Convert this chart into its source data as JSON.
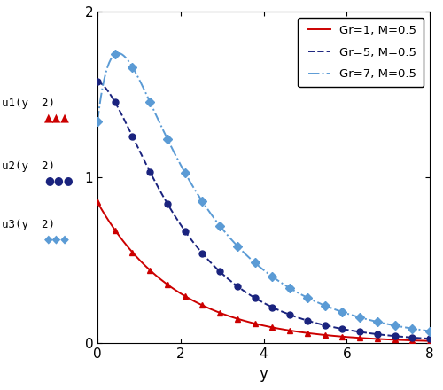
{
  "title": "",
  "xlabel": "y",
  "ylabel": "",
  "xlim": [
    0,
    8
  ],
  "ylim": [
    0,
    2
  ],
  "xticks": [
    0,
    2,
    4,
    6,
    8
  ],
  "yticks": [
    0,
    1,
    2
  ],
  "series": [
    {
      "label": "Gr=1, M=0.5",
      "Gr": 1,
      "M": 0.5,
      "line_color": "#cc0000",
      "marker": "^",
      "marker_color": "#cc0000",
      "linestyle": "-",
      "y0": 0.85,
      "peak_y": 0.0,
      "peak_u": 0.85,
      "decay": 0.52
    },
    {
      "label": "Gr=5, M=0.5",
      "Gr": 5,
      "M": 0.5,
      "line_color": "#1a237e",
      "marker": "o",
      "marker_color": "#1a237e",
      "linestyle": "--",
      "y0": 1.58,
      "peak_y": 0.8,
      "peak_u": 1.58,
      "decay": 0.72
    },
    {
      "label": "Gr=7, M=0.5",
      "Gr": 7,
      "M": 0.5,
      "line_color": "#5b9bd5",
      "marker": "D",
      "marker_color": "#5b9bd5",
      "linestyle": "-.",
      "y0": 1.72,
      "peak_y": 0.5,
      "peak_u": 1.75,
      "decay": 0.9
    }
  ],
  "left_labels": [
    {
      "text": "u1(y  2)",
      "y_fig": 0.72,
      "marker_char": "▲▲▲",
      "marker_color": "#cc0000"
    },
    {
      "text": "u2(y  2)",
      "y_fig": 0.56,
      "marker_char": "●●●",
      "marker_color": "#1a237e"
    },
    {
      "text": "u3(y  2)",
      "y_fig": 0.42,
      "marker_char": "◆◆◆",
      "marker_color": "#5b9bd5"
    }
  ],
  "legend_loc": "upper right",
  "background_color": "#ffffff",
  "figsize": [
    5.0,
    4.4
  ],
  "dpi": 100
}
